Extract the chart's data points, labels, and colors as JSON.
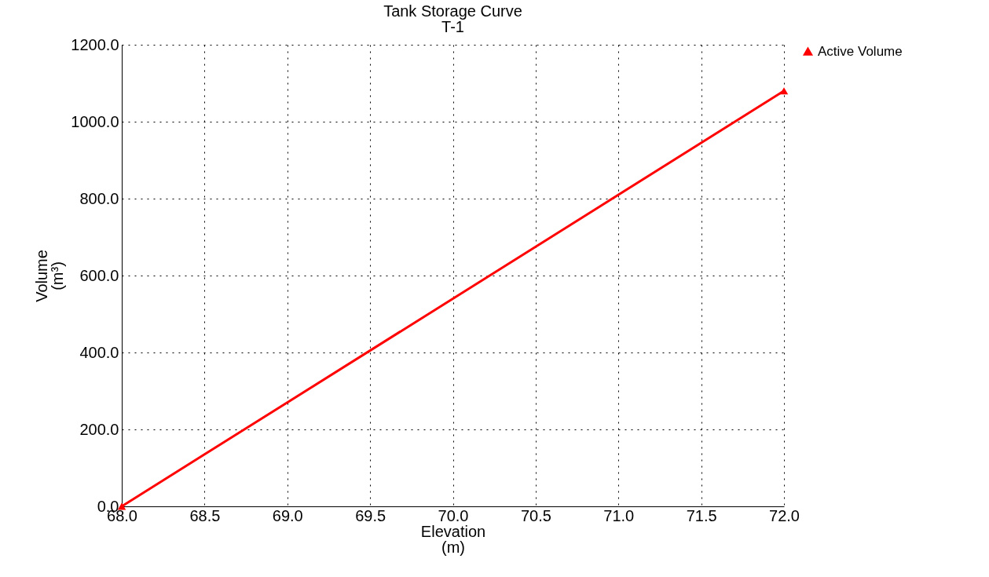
{
  "chart_data": {
    "type": "line",
    "title": "Tank Storage Curve",
    "subtitle": "T-1",
    "xlabel": "Elevation\n(m)",
    "ylabel": "Volume\n(m³)",
    "x": [
      68.0,
      72.0
    ],
    "series": [
      {
        "name": "Active Volume",
        "color": "#ff0000",
        "values": [
          0,
          1080
        ]
      }
    ],
    "xlim": [
      68,
      72
    ],
    "ylim": [
      0,
      1200
    ],
    "xticks": [
      {
        "value": 68,
        "label": "68.0"
      },
      {
        "value": 68.5,
        "label": "68.5"
      },
      {
        "value": 69,
        "label": "69.0"
      },
      {
        "value": 69.5,
        "label": "69.5"
      },
      {
        "value": 70,
        "label": "70.0"
      },
      {
        "value": 70.5,
        "label": "70.5"
      },
      {
        "value": 71,
        "label": "71.0"
      },
      {
        "value": 71.5,
        "label": "71.5"
      },
      {
        "value": 72,
        "label": "72.0"
      }
    ],
    "yticks": [
      {
        "value": 0,
        "label": "0.0"
      },
      {
        "value": 200,
        "label": "200.0"
      },
      {
        "value": 400,
        "label": "400.0"
      },
      {
        "value": 600,
        "label": "600.0"
      },
      {
        "value": 800,
        "label": "800.0"
      },
      {
        "value": 1000,
        "label": "1000.0"
      },
      {
        "value": 1200,
        "label": "1200.0"
      }
    ],
    "grid": true,
    "legend": "top right",
    "marker": "triangle",
    "line_style": "solid"
  }
}
